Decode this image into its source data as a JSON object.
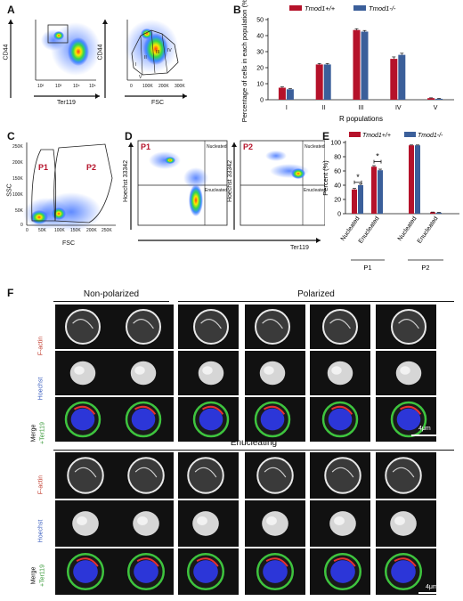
{
  "panels": {
    "A": "A",
    "B": "B",
    "C": "C",
    "D": "D",
    "E": "E",
    "F": "F"
  },
  "panelA": {
    "plot1": {
      "ylabel": "CD44",
      "xlabel": "Ter119"
    },
    "plot2": {
      "ylabel": "CD44",
      "xlabel": "FSC",
      "xticks": [
        "0",
        "100K",
        "200K",
        "300K"
      ],
      "gates": [
        "I",
        "II",
        "III",
        "IV",
        "V"
      ]
    },
    "log_ticks": [
      "10²",
      "10³",
      "10⁴",
      "10⁵"
    ]
  },
  "panelC": {
    "ylabel": "SSC",
    "xlabel": "FSC",
    "xticks": [
      "0",
      "50K",
      "100K",
      "150K",
      "200K",
      "250K"
    ],
    "yticks": [
      "0",
      "50K",
      "100K",
      "150K",
      "200K",
      "250K"
    ],
    "gate1": "P1",
    "gate2": "P2"
  },
  "panelD": {
    "ylabel": "Hoechst 33342",
    "xlabel": "Ter119",
    "plot1": {
      "title": "P1",
      "q_top": "Nucleated",
      "q_bottom": "Enucleated"
    },
    "plot2": {
      "title": "P2",
      "q_top": "Nucleated",
      "q_bottom": "Enucleated"
    }
  },
  "colors": {
    "wt": "#b5122a",
    "ko": "#3b5f9a"
  },
  "chart_data": [
    {
      "panel": "B",
      "type": "bar",
      "categories": [
        "I",
        "II",
        "III",
        "IV",
        "V"
      ],
      "series": [
        {
          "name": "Tmod1+/+",
          "values": [
            7.5,
            22,
            43.5,
            25.5,
            1
          ]
        },
        {
          "name": "Tmod1-/-",
          "values": [
            6.5,
            22,
            42.5,
            28,
            0.6
          ]
        }
      ],
      "errors": [
        [
          0.5,
          0.6,
          0.8,
          1.2,
          0.2
        ],
        [
          0.4,
          0.6,
          0.7,
          1.0,
          0.2
        ]
      ],
      "xlabel": "R populations",
      "ylabel": "Percentage of cells in each population (%)",
      "ylim": [
        0,
        50
      ],
      "yticks": [
        "0",
        "10",
        "20",
        "30",
        "40",
        "50"
      ],
      "legend": "top"
    },
    {
      "panel": "E",
      "type": "bar",
      "categories": [
        "Nucleated",
        "Enucleated",
        "Nucleated",
        "Enucleated"
      ],
      "groups": [
        "P1",
        "P2"
      ],
      "series": [
        {
          "name": "Tmod1+/+",
          "values": [
            34,
            66,
            96,
            2
          ]
        },
        {
          "name": "Tmod1-/-",
          "values": [
            40,
            61,
            96,
            1.5
          ]
        }
      ],
      "errors": [
        [
          1.5,
          1.5,
          0.5,
          0.3
        ],
        [
          1.5,
          1.5,
          0.5,
          0.3
        ]
      ],
      "significance": [
        "*",
        "*"
      ],
      "ylabel": "Percent (%)",
      "ylim": [
        0,
        100
      ],
      "yticks": [
        "0",
        "20",
        "40",
        "60",
        "80",
        "100"
      ],
      "legend": "top"
    }
  ],
  "panelF": {
    "groups": {
      "nonpolarized": "Non-polarized",
      "polarized": "Polarized",
      "enucleating": "Enucleating"
    },
    "rows": {
      "factin": "F-actin",
      "hoechst": "Hoechst",
      "merge": "Merge",
      "ter119": "+Ter119"
    },
    "scale": "4μm"
  }
}
